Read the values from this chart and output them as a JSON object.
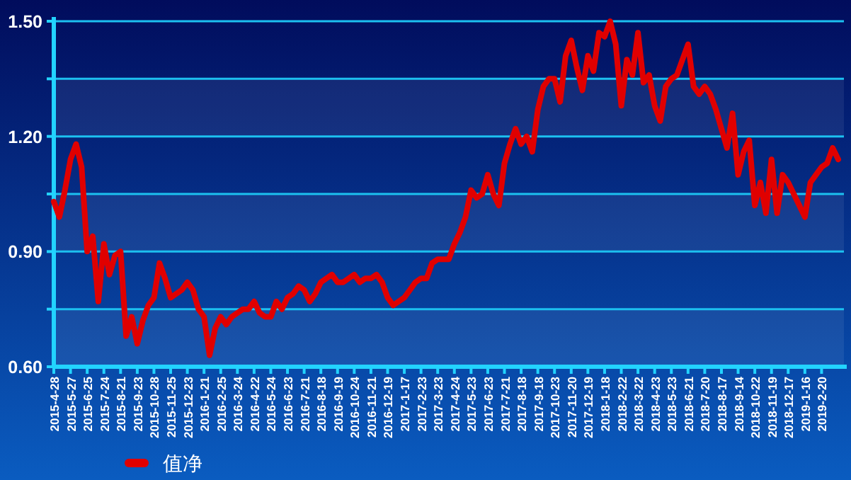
{
  "chart_data": {
    "type": "line",
    "categories": [
      "2015-4-28",
      null,
      null,
      "2015-5-27",
      null,
      null,
      "2015-6-25",
      null,
      null,
      "2015-7-24",
      null,
      null,
      "2015-8-21",
      null,
      null,
      "2015-9-23",
      null,
      null,
      "2015-10-28",
      null,
      null,
      "2015-11-25",
      null,
      null,
      "2015-12-23",
      null,
      null,
      "2016-1-21",
      null,
      null,
      "2016-2-25",
      null,
      null,
      "2016-3-24",
      null,
      null,
      "2016-4-22",
      null,
      null,
      "2016-5-24",
      null,
      null,
      "2016-6-23",
      null,
      null,
      "2016-7-21",
      null,
      null,
      "2016-8-18",
      null,
      null,
      "2016-9-19",
      null,
      null,
      "2016-10-24",
      null,
      null,
      "2016-11-21",
      null,
      null,
      "2016-12-19",
      null,
      null,
      "2017-1-17",
      null,
      null,
      "2017-2-23",
      null,
      null,
      "2017-3-23",
      null,
      null,
      "2017-4-24",
      null,
      null,
      "2017-5-23",
      null,
      null,
      "2017-6-23",
      null,
      null,
      "2017-7-21",
      null,
      null,
      "2017-8-18",
      null,
      null,
      "2017-9-18",
      null,
      null,
      "2017-10-23",
      null,
      null,
      "2017-11-20",
      null,
      null,
      "2017-12-19",
      null,
      null,
      "2018-1-18",
      null,
      null,
      "2018-2-22",
      null,
      null,
      "2018-3-22",
      null,
      null,
      "2018-4-23",
      null,
      null,
      "2018-5-23",
      null,
      null,
      "2018-6-21",
      null,
      null,
      "2018-7-20",
      null,
      null,
      "2018-8-17",
      null,
      null,
      "2018-9-14",
      null,
      null,
      "2018-10-22",
      null,
      null,
      "2018-11-19",
      null,
      null,
      "2018-12-17",
      null,
      null,
      "2019-1-16",
      null,
      null,
      "2019-2-20",
      null,
      null,
      null
    ],
    "series": [
      {
        "name": "值净",
        "color": "#e00000",
        "values": [
          1.03,
          0.99,
          1.06,
          1.14,
          1.18,
          1.12,
          0.9,
          0.94,
          0.77,
          0.92,
          0.84,
          0.89,
          0.9,
          0.68,
          0.73,
          0.66,
          0.72,
          0.76,
          0.78,
          0.87,
          0.83,
          0.78,
          0.79,
          0.8,
          0.82,
          0.8,
          0.75,
          0.73,
          0.63,
          0.7,
          0.73,
          0.71,
          0.73,
          0.74,
          0.75,
          0.75,
          0.77,
          0.74,
          0.73,
          0.73,
          0.77,
          0.75,
          0.78,
          0.79,
          0.81,
          0.8,
          0.77,
          0.79,
          0.82,
          0.83,
          0.84,
          0.82,
          0.82,
          0.83,
          0.84,
          0.82,
          0.83,
          0.83,
          0.84,
          0.82,
          0.78,
          0.76,
          0.77,
          0.78,
          0.8,
          0.82,
          0.83,
          0.83,
          0.87,
          0.88,
          0.88,
          0.88,
          0.92,
          0.95,
          0.99,
          1.06,
          1.04,
          1.05,
          1.1,
          1.05,
          1.02,
          1.13,
          1.18,
          1.22,
          1.18,
          1.2,
          1.16,
          1.27,
          1.33,
          1.35,
          1.35,
          1.29,
          1.41,
          1.45,
          1.38,
          1.32,
          1.41,
          1.37,
          1.47,
          1.46,
          1.5,
          1.44,
          1.28,
          1.4,
          1.36,
          1.47,
          1.34,
          1.36,
          1.28,
          1.24,
          1.33,
          1.35,
          1.36,
          1.4,
          1.44,
          1.33,
          1.31,
          1.33,
          1.31,
          1.27,
          1.22,
          1.17,
          1.26,
          1.1,
          1.16,
          1.19,
          1.02,
          1.08,
          1.0,
          1.14,
          1.0,
          1.1,
          1.08,
          1.05,
          1.02,
          0.99,
          1.08,
          1.1,
          1.12,
          1.13,
          1.17,
          1.14
        ]
      }
    ],
    "ylim": [
      0.6,
      1.5
    ],
    "yticks": [
      {
        "value": 0.6,
        "label": "0.60"
      },
      {
        "value": 0.75,
        "label": null
      },
      {
        "value": 0.9,
        "label": "0.90"
      },
      {
        "value": 1.05,
        "label": null
      },
      {
        "value": 1.2,
        "label": "1.20"
      },
      {
        "value": 1.35,
        "label": null
      },
      {
        "value": 1.5,
        "label": "1.50"
      }
    ],
    "grid": "y",
    "legend": "bottom left",
    "marker": "none",
    "line_style": "solid"
  }
}
